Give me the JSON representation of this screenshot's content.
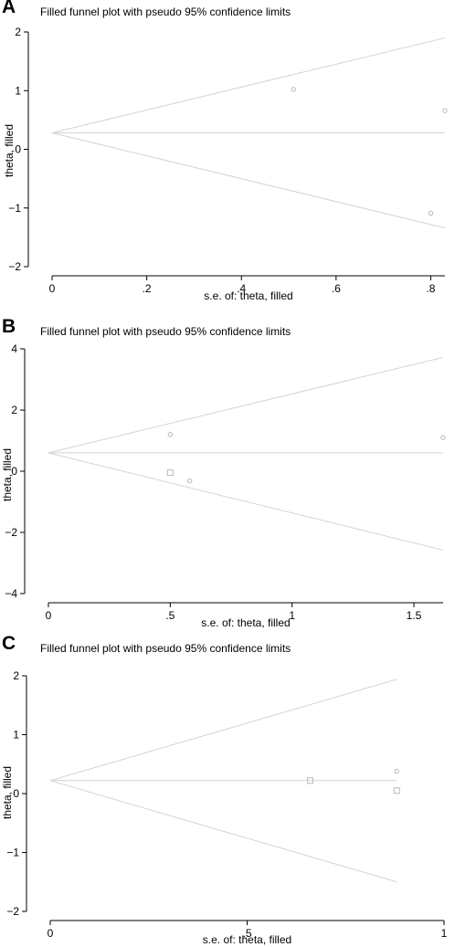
{
  "chart_data": [
    {
      "panel": "A",
      "type": "scatter",
      "title": "Filled funnel plot with pseudo 95% confidence limits",
      "xlabel": "s.e. of: theta, filled",
      "ylabel": "theta, filled",
      "xlim": [
        0,
        0.83
      ],
      "ylim": [
        -2,
        2
      ],
      "xticks": [
        0,
        0.2,
        0.4,
        0.6,
        0.8
      ],
      "xtick_labels": [
        "0",
        ".2",
        ".4",
        ".6",
        ".8"
      ],
      "yticks": [
        -2,
        -1,
        0,
        1,
        2
      ],
      "ytick_labels": [
        "−2",
        "−1",
        "0",
        "1",
        "2"
      ],
      "pooled_estimate": 0.28,
      "funnel_upper": [
        [
          0,
          0.28
        ],
        [
          0.83,
          1.9
        ]
      ],
      "funnel_lower": [
        [
          0,
          0.28
        ],
        [
          0.83,
          -1.34
        ]
      ],
      "points": [
        {
          "x": 0.51,
          "y": 1.02,
          "filled": false
        },
        {
          "x": 0.83,
          "y": 0.66,
          "filled": false
        },
        {
          "x": 0.8,
          "y": -1.09,
          "filled": false
        }
      ]
    },
    {
      "panel": "B",
      "type": "scatter",
      "title": "Filled funnel plot with pseudo 95% confidence limits",
      "xlabel": "s.e. of: theta, filled",
      "ylabel": "theta, filled",
      "xlim": [
        0,
        1.62
      ],
      "ylim": [
        -4,
        4
      ],
      "xticks": [
        0,
        0.5,
        1,
        1.5
      ],
      "xtick_labels": [
        "0",
        ".5",
        "1",
        "1.5"
      ],
      "yticks": [
        -4,
        -2,
        0,
        2,
        4
      ],
      "ytick_labels": [
        "−4",
        "−2",
        "0",
        "2",
        "4"
      ],
      "pooled_estimate": 0.6,
      "funnel_upper": [
        [
          0,
          0.6
        ],
        [
          1.62,
          3.72
        ]
      ],
      "funnel_lower": [
        [
          0,
          0.6
        ],
        [
          1.62,
          -2.58
        ]
      ],
      "points": [
        {
          "x": 0.5,
          "y": 1.2,
          "filled": false
        },
        {
          "x": 1.62,
          "y": 1.1,
          "filled": false
        },
        {
          "x": 0.5,
          "y": -0.05,
          "filled": true
        },
        {
          "x": 0.58,
          "y": -0.32,
          "filled": false
        }
      ]
    },
    {
      "panel": "C",
      "type": "scatter",
      "title": "Filled funnel plot with pseudo 95% confidence limits",
      "xlabel": "s.e. of: theta, filled",
      "ylabel": "theta, filled",
      "xlim": [
        0,
        1
      ],
      "ylim": [
        -2,
        2
      ],
      "xticks": [
        0,
        0.5,
        1
      ],
      "xtick_labels": [
        "0",
        ".5",
        "1"
      ],
      "yticks": [
        -2,
        -1,
        0,
        1,
        2
      ],
      "ytick_labels": [
        "−2",
        "−1",
        "0",
        "1",
        "2"
      ],
      "pooled_estimate": 0.22,
      "funnel_upper": [
        [
          0,
          0.22
        ],
        [
          0.88,
          1.94
        ]
      ],
      "funnel_lower": [
        [
          0,
          0.22
        ],
        [
          0.88,
          -1.5
        ]
      ],
      "points": [
        {
          "x": 0.66,
          "y": 0.22,
          "filled": true
        },
        {
          "x": 0.88,
          "y": 0.38,
          "filled": false
        },
        {
          "x": 0.88,
          "y": 0.05,
          "filled": true
        }
      ]
    }
  ],
  "colors": {
    "funnel": "#d4d4d4",
    "pooled_line": "#d4d4d4",
    "point": "#b9b9b9",
    "axis": "#000000"
  }
}
